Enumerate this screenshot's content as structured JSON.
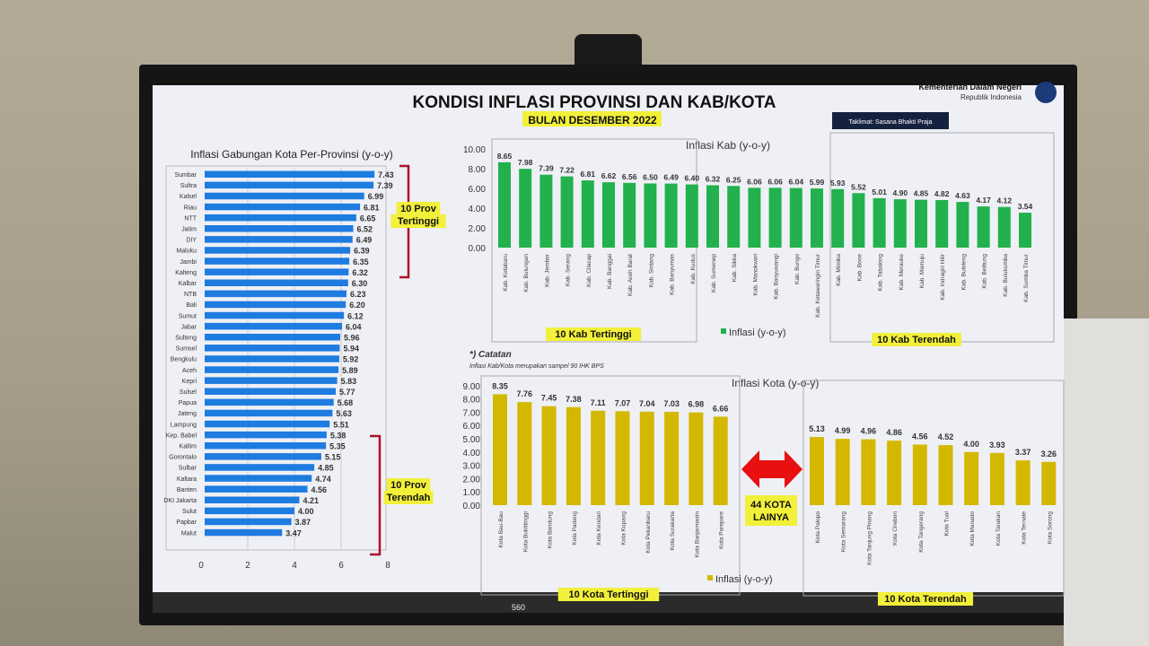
{
  "header": {
    "title": "KONDISI INFLASI PROVINSI DAN KAB/KOTA",
    "subtitle": "BULAN DESEMBER 2022",
    "ministry": "Kementerian Dalam Negeri",
    "ministry_sub": "Republik Indonesia",
    "location_badge": "Taklimat: Sasana Bhakti Praja"
  },
  "notes": {
    "title": "*) Catatan",
    "text": "Inflasi Kab/Kota merupakan sampel 90 IHK BPS"
  },
  "arrow_label": "44 KOTA LAINYA",
  "taskbar": {
    "participants": "560"
  },
  "colors": {
    "province_bar": "#1e7be0",
    "kab_bar": "#22b14c",
    "kota_bar": "#d4b800",
    "bracket": "#b0102a",
    "highlight": "#f2f03a"
  },
  "chart_data": [
    {
      "type": "bar",
      "orientation": "horizontal",
      "title": "Inflasi Gabungan Kota Per-Provinsi (y-o-y)",
      "categories": [
        "Sumbar",
        "Sultra",
        "Kalsel",
        "Riau",
        "NTT",
        "Jatim",
        "DIY",
        "Maluku",
        "Jambi",
        "Kalteng",
        "Kalbar",
        "NTB",
        "Bali",
        "Sumut",
        "Jabar",
        "Sulteng",
        "Sumsel",
        "Bengkulu",
        "Aceh",
        "Kepri",
        "Sulsel",
        "Papua",
        "Jateng",
        "Lampung",
        "Kep. Babel",
        "Kaltim",
        "Gorontalo",
        "Sulbar",
        "Kaltara",
        "Banten",
        "DKI Jakarta",
        "Sulut",
        "Papbar",
        "Malut"
      ],
      "values": [
        7.43,
        7.39,
        6.99,
        6.81,
        6.65,
        6.52,
        6.49,
        6.39,
        6.35,
        6.32,
        6.3,
        6.23,
        6.2,
        6.12,
        6.04,
        5.96,
        5.94,
        5.92,
        5.89,
        5.83,
        5.77,
        5.68,
        5.63,
        5.51,
        5.38,
        5.35,
        5.15,
        4.85,
        4.74,
        4.56,
        4.21,
        4.0,
        3.87,
        3.47
      ],
      "xlim": [
        0,
        8
      ],
      "xticks": [
        "0",
        "2",
        "4",
        "6",
        "8"
      ],
      "annotations": [
        "10 Prov Tertinggi",
        "10 Prov Terendah"
      ]
    },
    {
      "type": "bar",
      "title": "Inflasi Kab (y-o-y)",
      "legend": "Inflasi (y-o-y)",
      "categories": [
        "Kab. Kotabaru",
        "Kab. Bulungan",
        "Kab. Jember",
        "Kab. Serang",
        "Kab. Cilacap",
        "Kab. Banggai",
        "Kab. Aceh Barat",
        "Kab. Sintang",
        "Kab. Banyumas",
        "Kab. Kudus",
        "Kab. Sumenep",
        "Kab. Sikka",
        "Kab. Manokwari",
        "Kab. Banyuwangi",
        "Kab. Bungo",
        "Kab. Kotawaringin Timur",
        "Kab. Mimika",
        "Kab. Bone",
        "Kab. Tabalong",
        "Kab. Merauke",
        "Kab. Mamuju",
        "Kab. Indragiri Hilir",
        "Kab. Buleleng",
        "Kab. Belitung",
        "Kab. Bulukumba",
        "Kab. Sumba Timur"
      ],
      "values": [
        8.65,
        7.98,
        7.39,
        7.22,
        6.81,
        6.62,
        6.56,
        6.5,
        6.49,
        6.4,
        6.32,
        6.25,
        6.06,
        6.06,
        6.04,
        5.99,
        5.93,
        5.52,
        5.01,
        4.9,
        4.85,
        4.82,
        4.63,
        4.17,
        4.12,
        3.54
      ],
      "ylim": [
        0,
        10
      ],
      "yticks": [
        "0.00",
        "2.00",
        "4.00",
        "6.00",
        "8.00",
        "10.00"
      ],
      "annotations": [
        "10 Kab Tertinggi",
        "10 Kab Terendah"
      ]
    },
    {
      "type": "bar",
      "title": "Inflasi Kota (y-o-y)",
      "legend": "Inflasi (y-o-y)",
      "categories": [
        "Kota Bau-Bau",
        "Kota Bukittinggi",
        "Kota Bandung",
        "Kota Padang",
        "Kota Kendari",
        "Kota Kupang",
        "Kota Pekanbaru",
        "Kota Surakarta",
        "Kota Banjarmasin",
        "Kota Parepare",
        "Kota Palopo",
        "Kota Semarang",
        "Kota Tanjung Pinang",
        "Kota Cirebon",
        "Kota Tangerang",
        "Kota Tual",
        "Kota Manado",
        "Kota Tarakan",
        "Kota Ternate",
        "Kota Sorong"
      ],
      "values": [
        8.35,
        7.76,
        7.45,
        7.38,
        7.11,
        7.07,
        7.04,
        7.03,
        6.98,
        6.66,
        5.13,
        4.99,
        4.96,
        4.86,
        4.56,
        4.52,
        4.0,
        3.93,
        3.37,
        3.26
      ],
      "ylim": [
        0,
        9
      ],
      "yticks": [
        "0.00",
        "1.00",
        "2.00",
        "3.00",
        "4.00",
        "5.00",
        "6.00",
        "7.00",
        "8.00",
        "9.00"
      ],
      "annotations": [
        "10 Kota Tertinggi",
        "10 Kota Terendah"
      ]
    }
  ]
}
